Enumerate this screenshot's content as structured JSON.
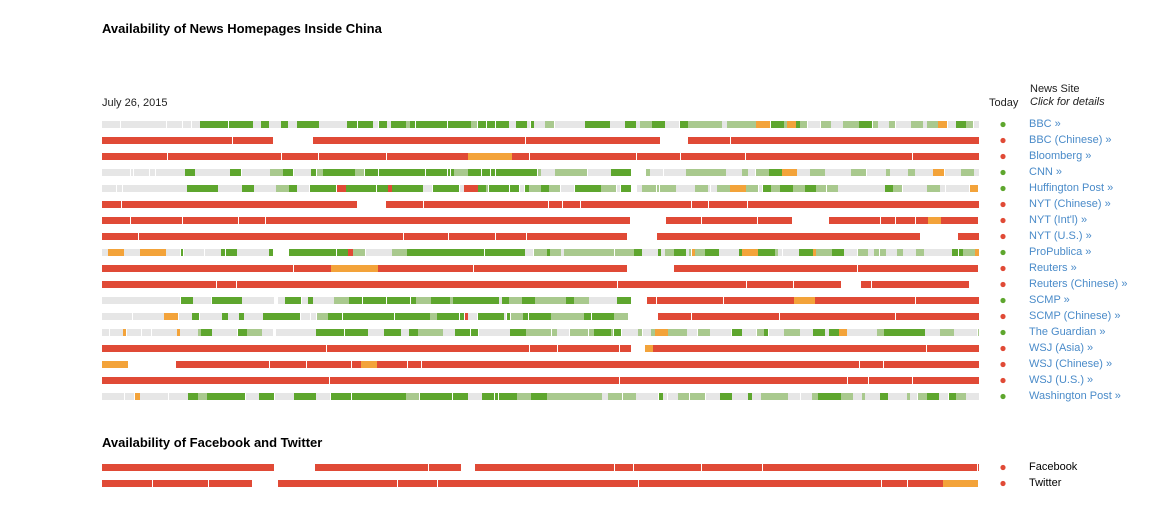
{
  "title": "Availability of News Homepages Inside China",
  "start_date": "July 26, 2015",
  "today_label": "Today",
  "column_header": {
    "label": "News Site",
    "sublabel": "Click for details"
  },
  "social_title": "Availability of Facebook and Twitter",
  "colors": {
    "blocked": "#e04a36",
    "available": "#5ea62e",
    "partial": "#a9c98e",
    "no_data": "#e6e6e6",
    "intermittent": "#f3a33a",
    "link": "#4a8bc9"
  },
  "chart_data": {
    "type": "heatmap",
    "legend": {
      "red": "blocked",
      "green": "available",
      "light-green": "mostly available",
      "orange": "intermittent",
      "gray": "no data"
    },
    "x_range_fraction": [
      0,
      1
    ],
    "news_sites": [
      {
        "name": "BBC »",
        "today": "available",
        "pattern": "mixed-available"
      },
      {
        "name": "BBC (Chinese) »",
        "today": "blocked",
        "pattern": "blocked"
      },
      {
        "name": "Bloomberg »",
        "today": "blocked",
        "pattern": "blocked"
      },
      {
        "name": "CNN »",
        "today": "available",
        "pattern": "mixed-available"
      },
      {
        "name": "Huffington Post »",
        "today": "available",
        "pattern": "mixed-available"
      },
      {
        "name": "NYT (Chinese) »",
        "today": "blocked",
        "pattern": "blocked"
      },
      {
        "name": "NYT (Int'l) »",
        "today": "blocked",
        "pattern": "blocked"
      },
      {
        "name": "NYT (U.S.) »",
        "today": "blocked",
        "pattern": "blocked"
      },
      {
        "name": "ProPublica »",
        "today": "available",
        "pattern": "mixed-available"
      },
      {
        "name": "Reuters »",
        "today": "blocked",
        "pattern": "blocked"
      },
      {
        "name": "Reuters (Chinese) »",
        "today": "blocked",
        "pattern": "blocked"
      },
      {
        "name": "SCMP »",
        "today": "available",
        "pattern": "mixed-then-blocked"
      },
      {
        "name": "SCMP (Chinese) »",
        "today": "blocked",
        "pattern": "mixed-then-blocked"
      },
      {
        "name": "The Guardian »",
        "today": "available",
        "pattern": "mixed-available"
      },
      {
        "name": "WSJ (Asia) »",
        "today": "blocked",
        "pattern": "blocked"
      },
      {
        "name": "WSJ (Chinese) »",
        "today": "blocked",
        "pattern": "blocked"
      },
      {
        "name": "WSJ (U.S.) »",
        "today": "blocked",
        "pattern": "blocked"
      },
      {
        "name": "Washington Post »",
        "today": "available",
        "pattern": "mixed-available"
      }
    ],
    "social_sites": [
      {
        "name": "Facebook",
        "today": "blocked",
        "pattern": "blocked"
      },
      {
        "name": "Twitter",
        "today": "blocked",
        "pattern": "blocked"
      }
    ]
  }
}
